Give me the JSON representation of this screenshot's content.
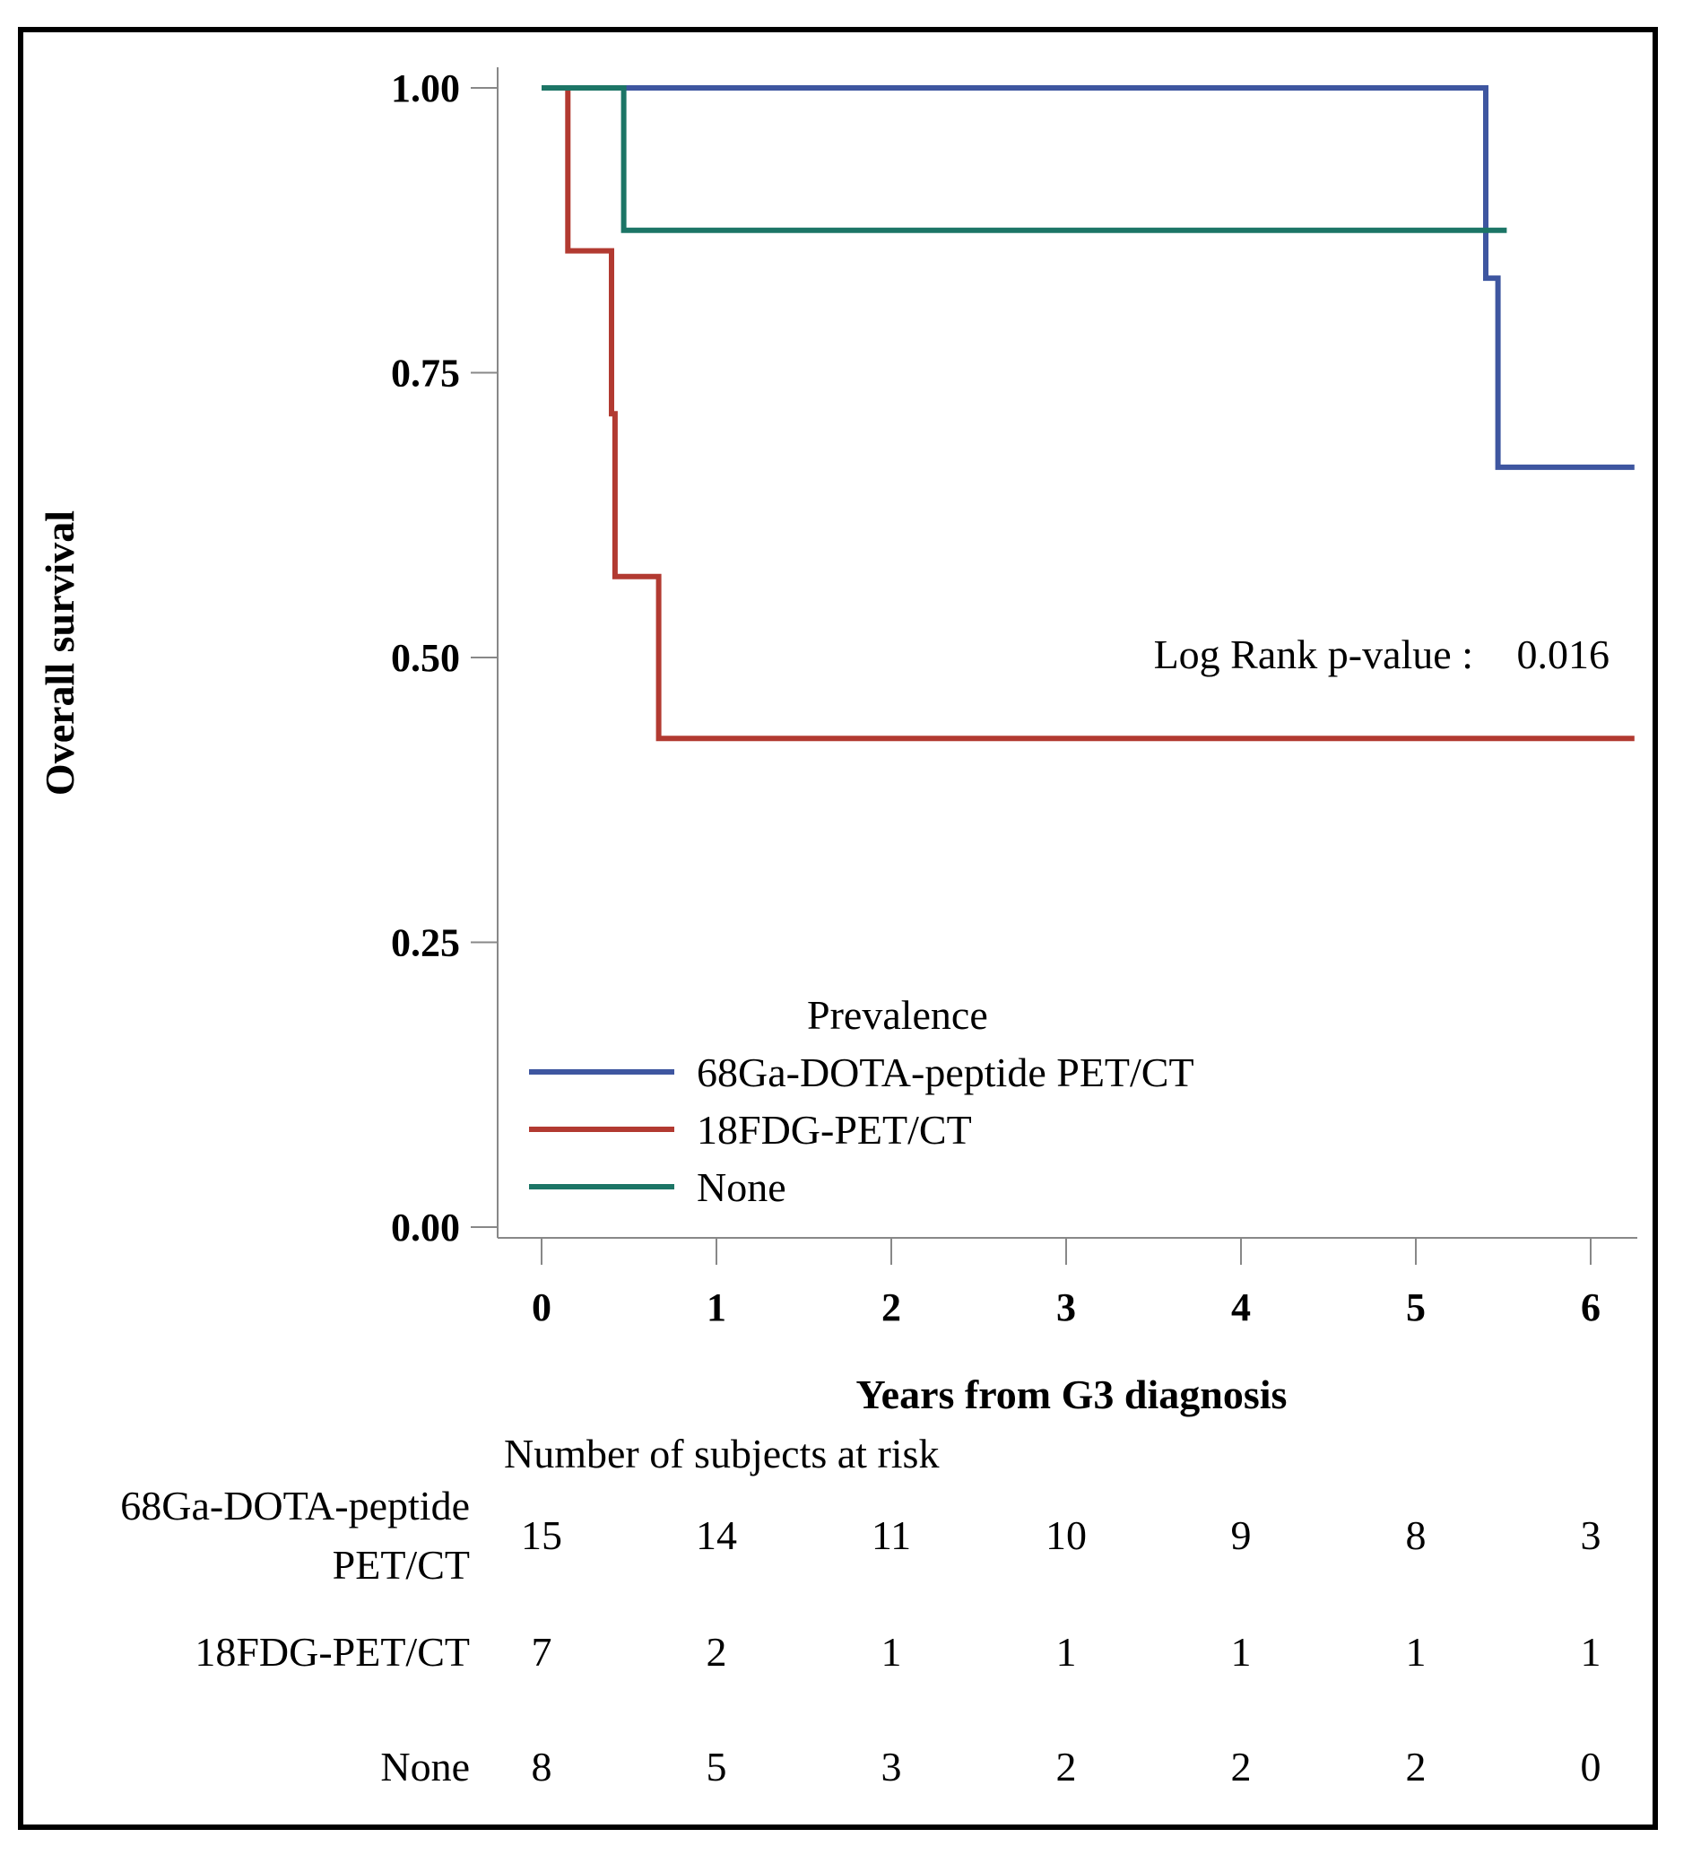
{
  "chart_data": {
    "type": "line",
    "title": "",
    "xlabel": "Years from G3 diagnosis",
    "ylabel": "Overall survival",
    "xlim": [
      -0.25,
      6.25
    ],
    "ylim": [
      0,
      1.0
    ],
    "x_ticks": [
      0,
      1,
      2,
      3,
      4,
      5,
      6
    ],
    "x_tick_labels": [
      "0",
      "1",
      "2",
      "3",
      "4",
      "5",
      "6"
    ],
    "y_ticks": [
      0,
      0.25,
      0.5,
      0.75,
      1.0
    ],
    "y_tick_labels": [
      "0.00",
      "0.25",
      "0.50",
      "0.75",
      "1.00"
    ],
    "step": true,
    "legend": {
      "title": "Prevalence",
      "placement": "bottom-left"
    },
    "series": [
      {
        "name": "68Ga-DOTA-peptide PET/CT",
        "color": "#3e56a0",
        "x": [
          0,
          5.4,
          5.4,
          5.47,
          5.47,
          6.25
        ],
        "y": [
          1.0,
          1.0,
          0.833,
          0.833,
          0.667,
          0.667
        ]
      },
      {
        "name": "18FDG-PET/CT",
        "color": "#b23a31",
        "x": [
          0.15,
          0.15,
          0.4,
          0.4,
          0.42,
          0.42,
          0.67,
          0.67,
          6.25
        ],
        "y": [
          1.0,
          0.857,
          0.857,
          0.714,
          0.714,
          0.571,
          0.571,
          0.429,
          0.429
        ]
      },
      {
        "name": "None",
        "color": "#1c7566",
        "x": [
          0,
          0.47,
          0.47,
          5.52
        ],
        "y": [
          1.0,
          1.0,
          0.875,
          0.875
        ]
      }
    ],
    "annotation": {
      "label": "Log Rank p-value :",
      "value": "0.016"
    },
    "risk_table": {
      "title": "Number of subjects at risk",
      "rows": [
        {
          "label_line1": "68Ga-DOTA-peptide",
          "label_line2": "PET/CT",
          "values": [
            "15",
            "14",
            "11",
            "10",
            "9",
            "8",
            "3"
          ]
        },
        {
          "label_line1": "18FDG-PET/CT",
          "label_line2": "",
          "values": [
            "7",
            "2",
            "1",
            "1",
            "1",
            "1",
            "1"
          ]
        },
        {
          "label_line1": "None",
          "label_line2": "",
          "values": [
            "8",
            "5",
            "3",
            "2",
            "2",
            "2",
            "0"
          ]
        }
      ]
    }
  }
}
